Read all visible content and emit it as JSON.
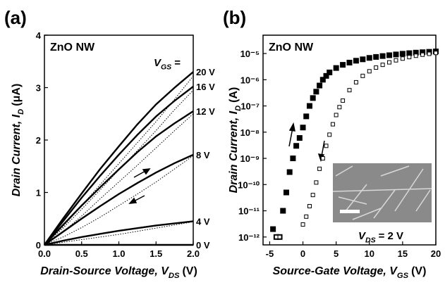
{
  "chart_data": [
    {
      "type": "line",
      "panel_label": "(a)",
      "title": "ZnO NW",
      "annotation": {
        "main": "V",
        "sub": "GS",
        "unit": "="
      },
      "xlabel": {
        "main": "Drain-Source Voltage, V",
        "sub": "DS",
        "unit": "(V)"
      },
      "ylabel": {
        "main": "Drain Current, I",
        "sub": "D",
        "unit": "(μA)"
      },
      "x": [
        0,
        0.25,
        0.5,
        0.75,
        1,
        1.25,
        1.5,
        1.75,
        2
      ],
      "xlim": [
        0,
        2
      ],
      "xticks": [
        {
          "value": 0,
          "label": "0.0"
        },
        {
          "value": 0.5,
          "label": "0.5"
        },
        {
          "value": 1,
          "label": "1.0"
        },
        {
          "value": 1.5,
          "label": "1.5"
        },
        {
          "value": 2,
          "label": "2.0"
        }
      ],
      "ylim": [
        0,
        4
      ],
      "yticks": [
        0,
        1,
        2,
        3,
        4
      ],
      "series": [
        {
          "name": "20 V",
          "color": "#000000",
          "style": "solid",
          "values": [
            0,
            0.5,
            0.98,
            1.45,
            1.88,
            2.3,
            2.68,
            3.0,
            3.3
          ]
        },
        {
          "color": "#000000",
          "style": "dotted",
          "values": [
            0,
            0.35,
            0.75,
            1.15,
            1.55,
            1.95,
            2.35,
            2.78,
            3.22
          ]
        },
        {
          "name": "16 V",
          "color": "#000000",
          "style": "solid",
          "values": [
            0,
            0.45,
            0.9,
            1.32,
            1.72,
            2.1,
            2.45,
            2.75,
            3.02
          ]
        },
        {
          "color": "#000000",
          "style": "dotted",
          "values": [
            0,
            0.32,
            0.68,
            1.05,
            1.43,
            1.8,
            2.18,
            2.58,
            2.95
          ]
        },
        {
          "name": "12 V",
          "color": "#000000",
          "style": "solid",
          "values": [
            0,
            0.38,
            0.75,
            1.1,
            1.44,
            1.77,
            2.07,
            2.32,
            2.55
          ]
        },
        {
          "color": "#000000",
          "style": "dotted",
          "values": [
            0,
            0.25,
            0.55,
            0.88,
            1.2,
            1.52,
            1.85,
            2.18,
            2.5
          ]
        },
        {
          "name": "8 V",
          "color": "#000000",
          "style": "solid",
          "values": [
            0,
            0.25,
            0.5,
            0.74,
            0.97,
            1.18,
            1.38,
            1.56,
            1.72
          ]
        },
        {
          "color": "#000000",
          "style": "dotted",
          "values": [
            0,
            0.15,
            0.33,
            0.53,
            0.75,
            0.97,
            1.2,
            1.45,
            1.7
          ]
        },
        {
          "name": "4 V",
          "color": "#000000",
          "style": "solid",
          "values": [
            0,
            0.08,
            0.15,
            0.21,
            0.27,
            0.32,
            0.37,
            0.41,
            0.45
          ]
        },
        {
          "color": "#000000",
          "style": "dotted",
          "values": [
            0,
            0.05,
            0.1,
            0.15,
            0.2,
            0.26,
            0.32,
            0.38,
            0.44
          ]
        },
        {
          "name": "0 V",
          "color": "#000000",
          "style": "solid",
          "values": [
            0,
            0,
            0,
            0,
            0,
            0,
            0,
            0,
            0
          ]
        }
      ]
    },
    {
      "type": "scatter",
      "panel_label": "(b)",
      "title": "ZnO NW",
      "xlabel": {
        "main": "Source-Gate Voltage, V",
        "sub": "GS",
        "unit": "(V)"
      },
      "ylabel": {
        "main": "Drain Current, I",
        "sub": "D",
        "unit": "(A)"
      },
      "inset_label": {
        "main": "V",
        "sub": "DS",
        "unit": "= 2 V"
      },
      "xlim": [
        -6,
        20
      ],
      "xticks": [
        -5,
        0,
        5,
        10,
        15,
        20
      ],
      "ylim": [
        5e-13,
        5e-05
      ],
      "ylog": true,
      "yticks": [
        {
          "value": 1e-12,
          "label": "10⁻¹²"
        },
        {
          "value": 1e-11,
          "label": "10⁻¹¹"
        },
        {
          "value": 1e-10,
          "label": "10⁻¹⁰"
        },
        {
          "value": 1e-09,
          "label": "10⁻⁹"
        },
        {
          "value": 1e-08,
          "label": "10⁻⁸"
        },
        {
          "value": 1e-07,
          "label": "10⁻⁷"
        },
        {
          "value": 1e-06,
          "label": "10⁻⁶"
        },
        {
          "value": 1e-05,
          "label": "10⁻⁵"
        }
      ],
      "series": [
        {
          "marker": "filled",
          "color": "#000000",
          "x": [
            -4.5,
            -4,
            -3.5,
            -3,
            -2.5,
            -2,
            -1.5,
            -1,
            -0.5,
            0,
            0.5,
            1,
            1.5,
            2,
            2.5,
            3,
            3.5,
            4,
            5,
            6,
            7,
            8,
            9,
            10,
            11,
            12,
            13,
            14,
            15,
            16,
            17,
            18,
            19,
            20
          ],
          "values": [
            2e-12,
            1e-12,
            1e-12,
            1e-11,
            5e-11,
            3e-10,
            1e-09,
            3e-09,
            6e-09,
            1.5e-08,
            4e-08,
            1e-07,
            2e-07,
            3.5e-07,
            6e-07,
            1e-06,
            1.4e-06,
            1.9e-06,
            2.8e-06,
            3.7e-06,
            4.5e-06,
            5.3e-06,
            6e-06,
            6.8e-06,
            7.4e-06,
            8e-06,
            8.6e-06,
            9.2e-06,
            9.8e-06,
            1.03e-05,
            1.08e-05,
            1.12e-05,
            1.16e-05,
            1.2e-05
          ]
        },
        {
          "marker": "open",
          "color": "#000000",
          "x": [
            -4,
            -3.5,
            0,
            0.5,
            1,
            1.5,
            2,
            2.5,
            3,
            3.5,
            4,
            4.5,
            5,
            5.5,
            6,
            7,
            8,
            9,
            10,
            11,
            12,
            13,
            14,
            15,
            16,
            17,
            18,
            19,
            20
          ],
          "values": [
            1e-12,
            1e-12,
            3e-12,
            6e-12,
            1.5e-11,
            4e-11,
            1.2e-10,
            4e-10,
            1e-09,
            3e-09,
            8e-09,
            2e-08,
            4.5e-08,
            9e-08,
            1.6e-07,
            4e-07,
            8e-07,
            1.4e-06,
            2.1e-06,
            2.9e-06,
            3.7e-06,
            4.6e-06,
            5.5e-06,
            6.4e-06,
            7.3e-06,
            8.2e-06,
            9e-06,
            9.7e-06,
            1.05e-05
          ]
        }
      ]
    }
  ]
}
